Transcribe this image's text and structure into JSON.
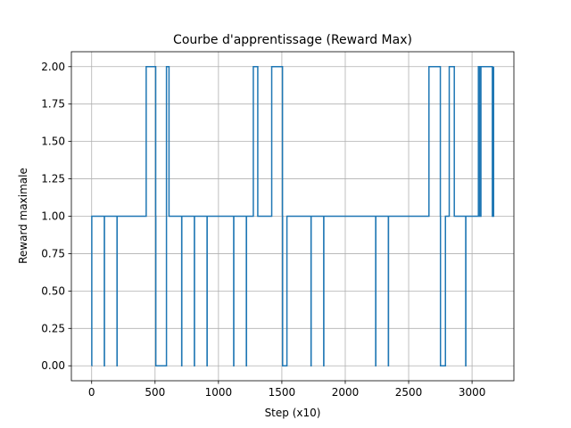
{
  "chart_data": {
    "type": "line",
    "title": "Courbe d'apprentissage (Reward Max)",
    "xlabel": "Step (x10)",
    "ylabel": "Reward maximale",
    "xlim": [
      -160,
      3330
    ],
    "ylim": [
      -0.1,
      2.1
    ],
    "xticks": [
      0,
      500,
      1000,
      1500,
      2000,
      2500,
      3000
    ],
    "xtick_labels": [
      "0",
      "500",
      "1000",
      "1500",
      "2000",
      "2500",
      "3000"
    ],
    "yticks": [
      0,
      0.25,
      0.5,
      0.75,
      1.0,
      1.25,
      1.5,
      1.75,
      2.0
    ],
    "ytick_labels": [
      "0.00",
      "0.25",
      "0.50",
      "0.75",
      "1.00",
      "1.25",
      "1.50",
      "1.75",
      "2.00"
    ],
    "grid": true,
    "step": "post",
    "series": [
      {
        "color": "#1f77b4",
        "x": [
          0,
          1,
          100,
          101,
          200,
          201,
          430,
          505,
          506,
          590,
          610,
          710,
          711,
          810,
          811,
          910,
          911,
          1120,
          1121,
          1220,
          1221,
          1275,
          1310,
          1420,
          1500,
          1505,
          1506,
          1540,
          1730,
          1731,
          1830,
          1831,
          2240,
          2241,
          2340,
          2341,
          2660,
          2750,
          2751,
          2790,
          2820,
          2860,
          2950,
          2951,
          3050,
          3060,
          3070,
          3160,
          3170
        ],
        "y": [
          0,
          1,
          0,
          1,
          0,
          1,
          2,
          1,
          0,
          2,
          1,
          0,
          1,
          0,
          1,
          0,
          1,
          0,
          1,
          0,
          1,
          2,
          1,
          2,
          2,
          1,
          0,
          1,
          0,
          1,
          0,
          1,
          0,
          1,
          0,
          1,
          2,
          1,
          0,
          1,
          2,
          1,
          0,
          1,
          2,
          1,
          2,
          1,
          2
        ]
      }
    ]
  }
}
